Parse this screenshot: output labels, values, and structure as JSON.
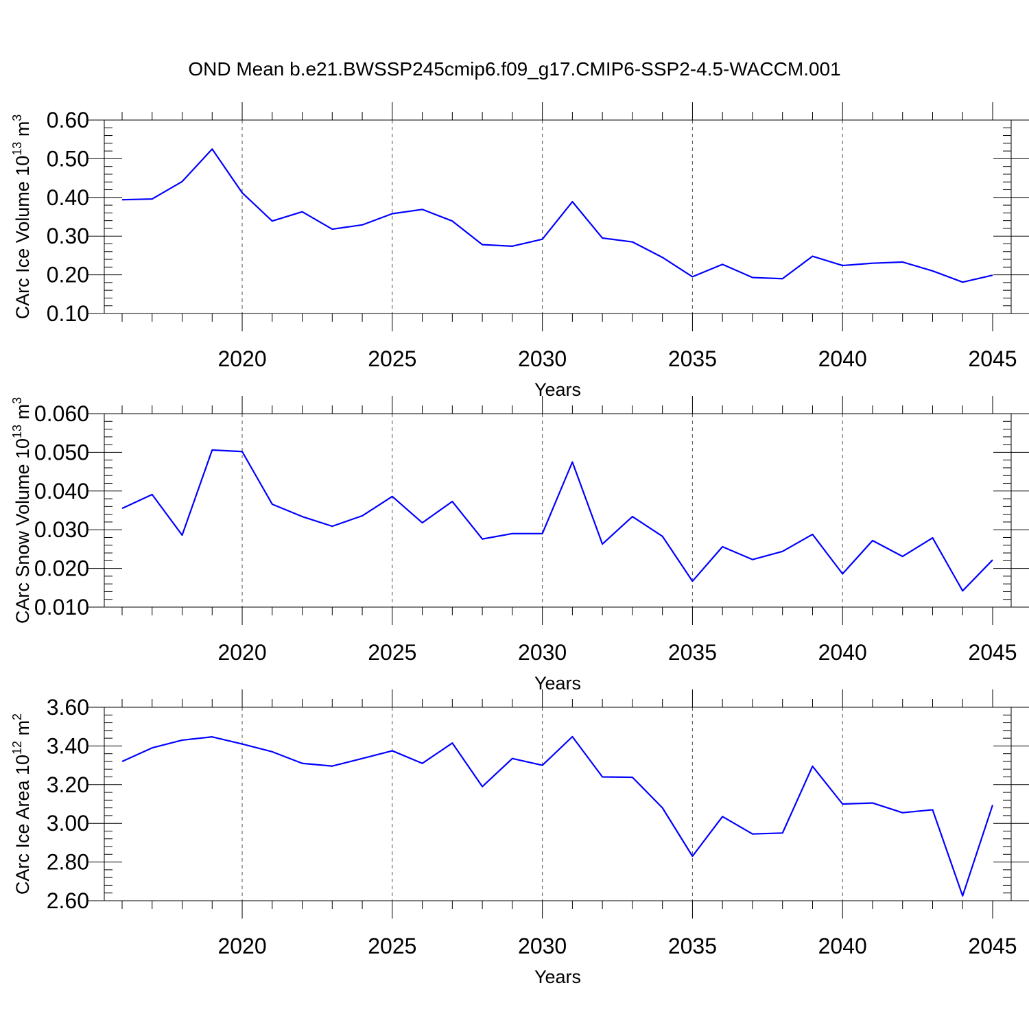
{
  "title": "OND Mean b.e21.BWSSP245cmip6.f09_g17.CMIP6-SSP2-4.5-WACCM.001",
  "line_color": "#0000ff",
  "chart_data": [
    {
      "type": "line",
      "xlabel": "Years",
      "ylabel": {
        "text": "CArc Ice Volume 10",
        "exp": "13",
        "unit": " m",
        "unit_exp": "3"
      },
      "xlim": [
        2016,
        2045
      ],
      "ylim": [
        0.1,
        0.6
      ],
      "xticks": [
        2020,
        2025,
        2030,
        2035,
        2040,
        2045
      ],
      "yticks": [
        "0.10",
        "0.20",
        "0.30",
        "0.40",
        "0.50",
        "0.60"
      ],
      "grid": "vertical dashed at major x ticks",
      "x": [
        2016,
        2017,
        2018,
        2019,
        2020,
        2021,
        2022,
        2023,
        2024,
        2025,
        2026,
        2027,
        2028,
        2029,
        2030,
        2031,
        2032,
        2033,
        2034,
        2035,
        2036,
        2037,
        2038,
        2039,
        2040,
        2041,
        2042,
        2043,
        2044,
        2045
      ],
      "series": [
        {
          "values": [
            0.394,
            0.396,
            0.441,
            0.525,
            0.412,
            0.339,
            0.363,
            0.318,
            0.329,
            0.358,
            0.369,
            0.339,
            0.278,
            0.274,
            0.292,
            0.389,
            0.295,
            0.285,
            0.245,
            0.195,
            0.227,
            0.193,
            0.19,
            0.248,
            0.224,
            0.23,
            0.233,
            0.21,
            0.181,
            0.199
          ]
        }
      ]
    },
    {
      "type": "line",
      "xlabel": "Years",
      "ylabel": {
        "text": "CArc Snow Volume 10",
        "exp": "13",
        "unit": " m",
        "unit_exp": "3"
      },
      "xlim": [
        2016,
        2045
      ],
      "ylim": [
        0.01,
        0.06
      ],
      "xticks": [
        2020,
        2025,
        2030,
        2035,
        2040,
        2045
      ],
      "yticks": [
        "0.010",
        "0.020",
        "0.030",
        "0.040",
        "0.050",
        "0.060"
      ],
      "grid": "vertical dashed at major x ticks",
      "x": [
        2016,
        2017,
        2018,
        2019,
        2020,
        2021,
        2022,
        2023,
        2024,
        2025,
        2026,
        2027,
        2028,
        2029,
        2030,
        2031,
        2032,
        2033,
        2034,
        2035,
        2036,
        2037,
        2038,
        2039,
        2040,
        2041,
        2042,
        2043,
        2044,
        2045
      ],
      "series": [
        {
          "values": [
            0.0355,
            0.0391,
            0.0286,
            0.0506,
            0.0502,
            0.0366,
            0.0334,
            0.0309,
            0.0336,
            0.0386,
            0.0318,
            0.0373,
            0.0276,
            0.029,
            0.029,
            0.0475,
            0.0263,
            0.0334,
            0.0283,
            0.0167,
            0.0256,
            0.0223,
            0.0244,
            0.0288,
            0.0186,
            0.0272,
            0.0231,
            0.0279,
            0.0142,
            0.0222
          ]
        }
      ]
    },
    {
      "type": "line",
      "xlabel": "Years",
      "ylabel": {
        "text": "CArc Ice Area 10",
        "exp": "12",
        "unit": " m",
        "unit_exp": "2"
      },
      "xlim": [
        2016,
        2045
      ],
      "ylim": [
        2.6,
        3.6
      ],
      "xticks": [
        2020,
        2025,
        2030,
        2035,
        2040,
        2045
      ],
      "yticks": [
        "2.60",
        "2.80",
        "3.00",
        "3.20",
        "3.40",
        "3.60"
      ],
      "grid": "vertical dashed at major x ticks",
      "x": [
        2016,
        2017,
        2018,
        2019,
        2020,
        2021,
        2022,
        2023,
        2024,
        2025,
        2026,
        2027,
        2028,
        2029,
        2030,
        2031,
        2032,
        2033,
        2034,
        2035,
        2036,
        2037,
        2038,
        2039,
        2040,
        2041,
        2042,
        2043,
        2044,
        2045
      ],
      "series": [
        {
          "values": [
            3.32,
            3.39,
            3.43,
            3.447,
            3.41,
            3.37,
            3.31,
            3.296,
            3.335,
            3.375,
            3.31,
            3.415,
            3.19,
            3.335,
            3.3,
            3.448,
            3.24,
            3.238,
            3.08,
            2.83,
            3.035,
            2.945,
            2.95,
            3.295,
            3.1,
            3.105,
            3.055,
            3.07,
            2.625,
            3.095
          ]
        }
      ]
    }
  ]
}
